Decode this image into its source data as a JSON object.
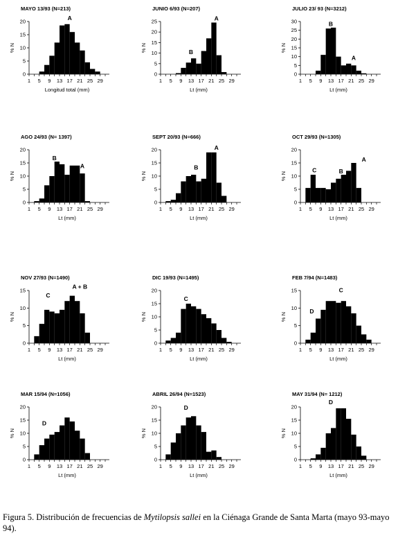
{
  "chart_data": [
    {
      "type": "bar",
      "title": "MAYO 13/93 (N=213)",
      "xlabel": "Longitud total (mm)",
      "ylabel": "% N",
      "ylim": [
        0,
        20
      ],
      "yticks": [
        0,
        5,
        10,
        15,
        20
      ],
      "xticks": [
        "1",
        "5",
        "9",
        "13",
        "17",
        "21",
        "25",
        "29"
      ],
      "x": [
        6,
        8,
        10,
        12,
        14,
        16,
        18,
        20,
        22,
        24,
        26,
        28
      ],
      "values": [
        1,
        3.5,
        7,
        12,
        18.5,
        19,
        16,
        12,
        9,
        4.5,
        2,
        1
      ],
      "annotations": [
        {
          "text": "A",
          "x": 17,
          "y": 20.5
        }
      ]
    },
    {
      "type": "bar",
      "title": "JUNIO 6/93 (N=207)",
      "xlabel": "Lt (mm)",
      "ylabel": "% N",
      "ylim": [
        0,
        25
      ],
      "yticks": [
        0,
        5,
        10,
        15,
        20,
        25
      ],
      "xticks": [
        "1",
        "5",
        "9",
        "13",
        "17",
        "21",
        "25",
        "29"
      ],
      "x": [
        8,
        10,
        12,
        14,
        16,
        18,
        20,
        22,
        24,
        26
      ],
      "values": [
        0.5,
        3,
        5.5,
        7.5,
        5,
        11,
        17,
        24.5,
        9,
        1
      ],
      "annotations": [
        {
          "text": "B",
          "x": 13,
          "y": 9.5
        },
        {
          "text": "A",
          "x": 23,
          "y": 25.5
        }
      ]
    },
    {
      "type": "bar",
      "title": "JULIO 23/ 93 (N=3212)",
      "xlabel": "Lt (mm)",
      "ylabel": "% N",
      "ylim": [
        0,
        30
      ],
      "yticks": [
        0,
        5,
        10,
        15,
        20,
        25,
        30
      ],
      "xticks": [
        "1",
        "5",
        "9",
        "13",
        "17",
        "21",
        "25",
        "29"
      ],
      "x": [
        8,
        10,
        12,
        14,
        16,
        18,
        20,
        22,
        24,
        26
      ],
      "values": [
        2,
        11,
        26,
        26.5,
        10,
        5,
        6,
        5,
        2,
        0.5
      ],
      "annotations": [
        {
          "text": "B",
          "x": 13,
          "y": 27.5
        },
        {
          "text": "A",
          "x": 22,
          "y": 8
        }
      ]
    },
    {
      "type": "bar",
      "title": "AGO 24/93 (N= 1397)",
      "xlabel": "Lt (mm)",
      "ylabel": "% N",
      "ylim": [
        0,
        20
      ],
      "yticks": [
        0,
        5,
        10,
        15,
        20
      ],
      "xticks": [
        "1",
        "5",
        "9",
        "13",
        "17",
        "21",
        "25",
        "29"
      ],
      "x": [
        4,
        6,
        8,
        10,
        12,
        14,
        16,
        18,
        20,
        22,
        24
      ],
      "values": [
        0.5,
        1.5,
        6.5,
        10,
        15.5,
        14.5,
        10.5,
        14,
        14,
        11,
        0.5
      ],
      "annotations": [
        {
          "text": "B",
          "x": 11,
          "y": 16
        },
        {
          "text": "A",
          "x": 22,
          "y": 13
        }
      ]
    },
    {
      "type": "bar",
      "title": "SEPT 20/93 (N=666)",
      "xlabel": "Lt (mm)",
      "ylabel": "% N",
      "ylim": [
        0,
        20
      ],
      "yticks": [
        0,
        5,
        10,
        15,
        20
      ],
      "xticks": [
        "1",
        "5",
        "9",
        "13",
        "17",
        "21",
        "25",
        "29"
      ],
      "x": [
        4,
        6,
        8,
        10,
        12,
        14,
        16,
        18,
        20,
        22,
        24,
        26
      ],
      "values": [
        0.5,
        1,
        3.5,
        8,
        10,
        10.5,
        8,
        9,
        19,
        19,
        7.5,
        2.5
      ],
      "annotations": [
        {
          "text": "B",
          "x": 15,
          "y": 12.5
        },
        {
          "text": "A",
          "x": 23,
          "y": 20
        }
      ]
    },
    {
      "type": "bar",
      "title": "OCT 29/93 (N=1305)",
      "xlabel": "Lt (mm)",
      "ylabel": "% N",
      "ylim": [
        0,
        20
      ],
      "yticks": [
        0,
        5,
        10,
        15,
        20
      ],
      "xticks": [
        "1",
        "5",
        "9",
        "13",
        "17",
        "21",
        "25",
        "29"
      ],
      "x": [
        4,
        6,
        8,
        10,
        12,
        14,
        16,
        18,
        20,
        22,
        24
      ],
      "values": [
        5.5,
        10.5,
        5.5,
        5.5,
        5,
        7.5,
        9,
        10.5,
        12,
        15,
        5.5
      ],
      "annotations": [
        {
          "text": "C",
          "x": 6.5,
          "y": 11.5
        },
        {
          "text": "B",
          "x": 17,
          "y": 11
        },
        {
          "text": "A",
          "x": 26,
          "y": 15.5
        }
      ]
    },
    {
      "type": "bar",
      "title": "NOV 27/93 (N=1490)",
      "xlabel": "Lt (mm)",
      "ylabel": "% N",
      "ylim": [
        0,
        15
      ],
      "yticks": [
        0,
        5,
        10,
        15
      ],
      "xticks": [
        "1",
        "5",
        "9",
        "13",
        "17",
        "21",
        "25",
        "29"
      ],
      "x": [
        4,
        6,
        8,
        10,
        12,
        14,
        16,
        18,
        20,
        22,
        24
      ],
      "values": [
        2,
        5.5,
        9.5,
        9,
        8.5,
        9.5,
        12,
        13.5,
        12,
        8.5,
        3
      ],
      "annotations": [
        {
          "text": "C",
          "x": 8.5,
          "y": 13
        },
        {
          "text": "A + B",
          "x": 21,
          "y": 15.5
        }
      ]
    },
    {
      "type": "bar",
      "title": "DIC 19/93 (N=1495)",
      "xlabel": "Lt (mm)",
      "ylabel": "% N",
      "ylim": [
        0,
        20
      ],
      "yticks": [
        0,
        5,
        10,
        15,
        20
      ],
      "xticks": [
        "1",
        "5",
        "9",
        "13",
        "17",
        "21",
        "25",
        "29"
      ],
      "x": [
        4,
        6,
        8,
        10,
        12,
        14,
        16,
        18,
        20,
        22,
        24,
        26,
        28
      ],
      "values": [
        1,
        2,
        4,
        13,
        15,
        14,
        13,
        11,
        9.5,
        7.5,
        5,
        2,
        0.5
      ],
      "annotations": [
        {
          "text": "C",
          "x": 11,
          "y": 16
        }
      ]
    },
    {
      "type": "bar",
      "title": "FEB 7/94 (N=1483)",
      "xlabel": "Lt (mm)",
      "ylabel": "% N",
      "ylim": [
        0,
        15
      ],
      "yticks": [
        0,
        5,
        10,
        15
      ],
      "xticks": [
        "1",
        "5",
        "9",
        "13",
        "17",
        "21",
        "25",
        "29"
      ],
      "x": [
        4,
        6,
        8,
        10,
        12,
        14,
        16,
        18,
        20,
        22,
        24,
        26,
        28
      ],
      "values": [
        1,
        3,
        7,
        9.5,
        12,
        12,
        11.5,
        12,
        10.5,
        8.5,
        5,
        2.5,
        1
      ],
      "annotations": [
        {
          "text": "D",
          "x": 5.5,
          "y": 8.5
        },
        {
          "text": "C",
          "x": 17,
          "y": 14.5
        }
      ]
    },
    {
      "type": "bar",
      "title": "MAR 15/94 (N=1056)",
      "xlabel": "Lt (mm)",
      "ylabel": "% N",
      "ylim": [
        0,
        20
      ],
      "yticks": [
        0,
        5,
        10,
        15,
        20
      ],
      "xticks": [
        "1",
        "5",
        "9",
        "13",
        "17",
        "21",
        "25",
        "29"
      ],
      "x": [
        4,
        6,
        8,
        10,
        12,
        14,
        16,
        18,
        20,
        22,
        24
      ],
      "values": [
        2,
        5.5,
        8,
        9.5,
        10.5,
        13,
        16,
        14.5,
        11,
        8,
        2.5
      ],
      "annotations": [
        {
          "text": "D",
          "x": 7,
          "y": 13
        }
      ]
    },
    {
      "type": "bar",
      "title": "ABRIL 26/94 (N=1523)",
      "xlabel": "Lt (mm)",
      "ylabel": "% N",
      "ylim": [
        0,
        20
      ],
      "yticks": [
        0,
        5,
        10,
        15,
        20
      ],
      "xticks": [
        "1",
        "5",
        "9",
        "13",
        "17",
        "21",
        "25",
        "29"
      ],
      "x": [
        4,
        6,
        8,
        10,
        12,
        14,
        16,
        18,
        20,
        22,
        24
      ],
      "values": [
        2,
        6.5,
        10,
        13,
        16,
        16.5,
        13,
        10.5,
        3,
        3.5,
        1
      ],
      "annotations": [
        {
          "text": "D",
          "x": 11,
          "y": 19
        }
      ]
    },
    {
      "type": "bar",
      "title": "MAY 31/94 (N= 1212)",
      "xlabel": "Lt (mm)",
      "ylabel": "% N",
      "ylim": [
        0,
        20
      ],
      "yticks": [
        0,
        5,
        10,
        15,
        20
      ],
      "xticks": [
        "1",
        "5",
        "9",
        "13",
        "17",
        "21",
        "25",
        "29"
      ],
      "x": [
        6,
        8,
        10,
        12,
        14,
        16,
        18,
        20,
        22,
        24,
        26
      ],
      "values": [
        0.5,
        2,
        4.5,
        10,
        12,
        19.5,
        19.5,
        15.5,
        9.5,
        5,
        1.5
      ],
      "annotations": [
        {
          "text": "D",
          "x": 13,
          "y": 21
        }
      ]
    }
  ],
  "caption": {
    "lead": "Figura 5. Distribución de frecuencias de ",
    "species": "Mytilopsis sallei",
    "tail": " en la Ciénaga Grande de Santa Marta (mayo 93-mayo 94)."
  }
}
